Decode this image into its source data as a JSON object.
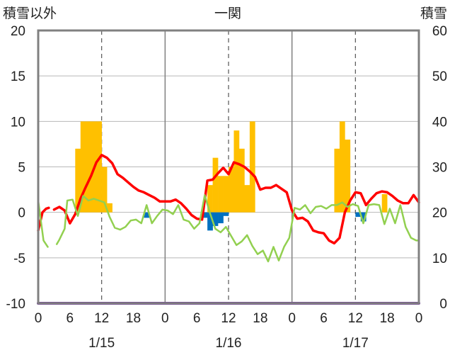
{
  "chart_data": {
    "type": "bar",
    "title": "一関",
    "left_axis_label": "積雪以外",
    "right_axis_label": "積雪",
    "left_ylim": [
      -10,
      20
    ],
    "left_yticks": [
      "-10",
      "-5",
      "0",
      "5",
      "10",
      "15",
      "20"
    ],
    "right_ylim": [
      0,
      60
    ],
    "right_yticks": [
      "0",
      "10",
      "20",
      "30",
      "40",
      "50",
      "60"
    ],
    "x_range_hours": [
      0,
      72
    ],
    "x_tick_labels": [
      "0",
      "6",
      "12",
      "18",
      "0",
      "6",
      "12",
      "18",
      "0",
      "6",
      "12",
      "18",
      "0"
    ],
    "day_labels": [
      "1/15",
      "1/16",
      "1/17"
    ],
    "grid": "vertical dashed lines at 12:00, solid lines at day boundaries",
    "colors": {
      "snowfall": "#FFC000",
      "precipitation": "#0070C0",
      "temperature": "#FF0000",
      "other": "#92D050",
      "snow_depth": "#7030A0",
      "frame": "#808080"
    },
    "series": [
      {
        "type": "bar",
        "color": "#FFC000",
        "axis": "left",
        "values": [
          [
            8,
            7
          ],
          [
            9,
            10
          ],
          [
            10,
            10
          ],
          [
            11,
            10
          ],
          [
            12,
            10
          ],
          [
            13,
            5
          ],
          [
            14,
            1
          ],
          [
            33,
            3
          ],
          [
            34,
            6
          ],
          [
            35,
            4
          ],
          [
            36,
            4
          ],
          [
            37,
            5
          ],
          [
            38,
            9
          ],
          [
            39,
            7
          ],
          [
            40,
            3
          ],
          [
            41,
            10
          ],
          [
            57,
            7
          ],
          [
            58,
            10
          ],
          [
            59,
            8
          ],
          [
            66,
            2
          ]
        ]
      },
      {
        "type": "bar",
        "color": "#0070C0",
        "axis": "left",
        "values": [
          [
            21,
            -0.6
          ],
          [
            32,
            -0.6
          ],
          [
            33,
            -2.0
          ],
          [
            34,
            -1.5
          ],
          [
            35,
            -1.2
          ],
          [
            36,
            -0.4
          ],
          [
            61,
            -0.5
          ],
          [
            62,
            -1.0
          ]
        ]
      },
      {
        "type": "line",
        "color": "#FF0000",
        "axis": "left",
        "segments": [
          [
            [
              0,
              -2
            ],
            [
              0.8,
              0
            ],
            [
              1.5,
              0.4
            ],
            [
              2,
              0.5
            ]
          ],
          [
            [
              3,
              0.3
            ],
            [
              4,
              0.6
            ],
            [
              5,
              0.2
            ],
            [
              6,
              -1.2
            ],
            [
              7,
              -0.2
            ],
            [
              8,
              1.5
            ],
            [
              9,
              2.8
            ],
            [
              10,
              4
            ],
            [
              11,
              5.5
            ],
            [
              12,
              6.3
            ],
            [
              13,
              6.0
            ],
            [
              14,
              5.4
            ],
            [
              15,
              4.2
            ],
            [
              16,
              3.8
            ],
            [
              17,
              3.3
            ],
            [
              18,
              2.8
            ],
            [
              19,
              2.4
            ],
            [
              20,
              2.2
            ],
            [
              21,
              1.9
            ],
            [
              22,
              1.6
            ],
            [
              23,
              1.2
            ],
            [
              24,
              1.2
            ],
            [
              25,
              1.2
            ],
            [
              26,
              1.4
            ],
            [
              27,
              1.0
            ],
            [
              28,
              0.4
            ],
            [
              29,
              -0.3
            ],
            [
              30,
              -0.7
            ],
            [
              31,
              -0.8
            ],
            [
              32,
              3.5
            ],
            [
              33,
              3.6
            ],
            [
              34,
              4.3
            ],
            [
              35,
              4.9
            ],
            [
              36,
              4.2
            ],
            [
              37,
              5.5
            ],
            [
              38,
              5.3
            ],
            [
              39,
              5.0
            ],
            [
              40,
              4.5
            ],
            [
              41,
              3.9
            ],
            [
              42,
              2.5
            ],
            [
              43,
              2.7
            ],
            [
              44,
              2.7
            ],
            [
              45,
              3.0
            ],
            [
              46,
              2.6
            ],
            [
              47,
              2.2
            ],
            [
              48,
              0.2
            ],
            [
              49,
              -0.7
            ],
            [
              50,
              -0.6
            ],
            [
              51,
              -1.0
            ],
            [
              52,
              -2.0
            ],
            [
              53,
              -2.2
            ],
            [
              54,
              -2.3
            ],
            [
              55,
              -3.1
            ],
            [
              56,
              -3.4
            ],
            [
              57,
              -2.8
            ],
            [
              58,
              0.0
            ],
            [
              59,
              1.3
            ],
            [
              60,
              2.2
            ],
            [
              61,
              2.1
            ],
            [
              62,
              0.8
            ],
            [
              63,
              1.5
            ],
            [
              64,
              2.1
            ],
            [
              65,
              2.3
            ],
            [
              66,
              2.2
            ],
            [
              67,
              1.8
            ],
            [
              68,
              1.3
            ],
            [
              69,
              1.0
            ],
            [
              70,
              1.0
            ],
            [
              71,
              1.9
            ],
            [
              72,
              1.1
            ]
          ]
        ]
      },
      {
        "type": "line",
        "color": "#92D050",
        "axis": "left",
        "segments": [
          [
            [
              0,
              1.3
            ],
            [
              1,
              -3.1
            ],
            [
              1.8,
              -3.8
            ]
          ],
          [
            [
              3.5,
              -3.5
            ],
            [
              4,
              -3.0
            ],
            [
              5,
              -1.8
            ],
            [
              5.5,
              1.3
            ],
            [
              6.5,
              1.4
            ],
            [
              7.5,
              -0.4
            ],
            [
              8.5,
              1.8
            ],
            [
              9.5,
              1.3
            ],
            [
              10.5,
              1.5
            ],
            [
              11.5,
              1.3
            ],
            [
              12.5,
              1.1
            ],
            [
              13.5,
              -0.5
            ],
            [
              14.5,
              -1.7
            ],
            [
              15.5,
              -1.9
            ],
            [
              16.5,
              -1.6
            ],
            [
              17.5,
              -0.9
            ],
            [
              18.5,
              -0.8
            ],
            [
              19.5,
              -1.2
            ],
            [
              20.5,
              0.8
            ],
            [
              21.5,
              -1.2
            ],
            [
              22.5,
              -0.4
            ],
            [
              23.5,
              0.3
            ],
            [
              24.5,
              0.2
            ],
            [
              25.5,
              -0.2
            ],
            [
              26.5,
              0.8
            ],
            [
              27.5,
              -0.8
            ],
            [
              28.5,
              -1.0
            ],
            [
              29.5,
              -1.8
            ],
            [
              30.5,
              -1.2
            ],
            [
              31.5,
              1.9
            ],
            [
              32.5,
              -0.1
            ],
            [
              33.5,
              -1.8
            ],
            [
              34.5,
              -2.2
            ],
            [
              35.5,
              -1.6
            ],
            [
              36.5,
              -2.6
            ],
            [
              37.5,
              -3.6
            ],
            [
              38.5,
              -3.2
            ],
            [
              39.5,
              -2.5
            ],
            [
              40.5,
              -3.7
            ],
            [
              41.5,
              -4.6
            ],
            [
              42.5,
              -4.2
            ],
            [
              43.5,
              -5.4
            ],
            [
              44.5,
              -3.8
            ],
            [
              45.5,
              -5.3
            ],
            [
              46.5,
              -3.8
            ],
            [
              47.5,
              -2.8
            ],
            [
              48.5,
              0.5
            ],
            [
              49.5,
              0.3
            ],
            [
              50.5,
              0.8
            ],
            [
              51.5,
              -0.1
            ],
            [
              52.5,
              0.6
            ],
            [
              53.5,
              0.7
            ],
            [
              54.5,
              0.4
            ],
            [
              55.5,
              0.8
            ],
            [
              56.5,
              0.8
            ],
            [
              57.5,
              1.1
            ],
            [
              58.5,
              0.6
            ],
            [
              59.5,
              0.9
            ],
            [
              60.5,
              0.7
            ],
            [
              61.5,
              -1.2
            ],
            [
              62.5,
              0.8
            ],
            [
              63.5,
              0.9
            ],
            [
              64.5,
              0.8
            ],
            [
              65.5,
              -1.3
            ],
            [
              66.5,
              0.4
            ],
            [
              67.5,
              -1.2
            ],
            [
              68.5,
              0.8
            ],
            [
              69.5,
              -1.6
            ],
            [
              70.5,
              -2.8
            ],
            [
              71.5,
              -3.1
            ],
            [
              72,
              -3.1
            ]
          ]
        ]
      },
      {
        "type": "line",
        "color": "#7030A0",
        "axis": "right",
        "segments": [
          [
            [
              0,
              0
            ],
            [
              72,
              0
            ]
          ]
        ]
      }
    ]
  }
}
